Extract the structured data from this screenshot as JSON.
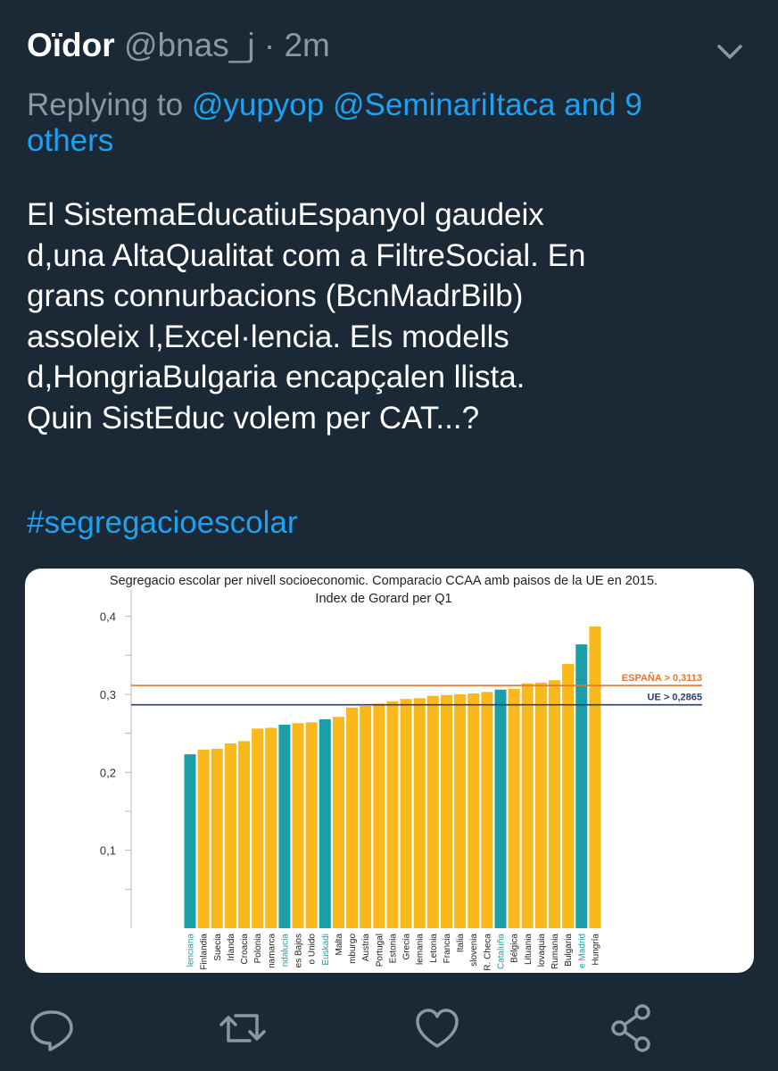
{
  "tweet": {
    "name": "Oïdor",
    "handle": "@bnas_j",
    "separator": "·",
    "time": "2m",
    "reply": {
      "prefix": "Replying to",
      "mentions": [
        "@yupyop",
        "@SeminariItaca"
      ],
      "others": "and 9 others"
    },
    "lines": [
      "El SistemaEducatiuEspanyol gaudeix",
      "d,una AltaQualitat com a FiltreSocial. En",
      "grans connurbacions (BcnMadrBilb)",
      "assoleix l,Excel·lencia. Els modells",
      "d,HongriaBulgaria encapçalen llista.",
      "Quin SistEduc volem per CAT...?"
    ],
    "hashtag": "#segregacioescolar"
  },
  "chart": {
    "type": "bar",
    "title": [
      "Segregacio escolar per nivell socioeconomic. Comparacio CCAA amb paisos de la UE en 2015.",
      "Index de Gorard per Q1"
    ],
    "categories": [
      "lenciana",
      "Finlandia",
      "Suecia",
      "Irlanda",
      "Croacia",
      "Polonia",
      "namarca",
      "ndalucia",
      "es Bajos",
      "o Unido",
      "Euskadi",
      "Malta",
      "mburgo",
      "Austria",
      "Portugal",
      "Estonia",
      "Grecia",
      "lemania",
      "Letonia",
      "Francia",
      "Italia",
      "slovenia",
      "R. Checa",
      "Cataluña",
      "Bélgica",
      "Lituania",
      "lovaquia",
      "Rumania",
      "Bulgaria",
      "e Madrid",
      "Hungría"
    ],
    "values": [
      0.223,
      0.229,
      0.23,
      0.237,
      0.24,
      0.256,
      0.257,
      0.261,
      0.263,
      0.264,
      0.268,
      0.271,
      0.283,
      0.285,
      0.288,
      0.291,
      0.294,
      0.295,
      0.298,
      0.299,
      0.3,
      0.301,
      0.303,
      0.306,
      0.307,
      0.314,
      0.315,
      0.318,
      0.339,
      0.364,
      0.387
    ],
    "colors": [
      "#1a9ea8",
      "#f9b81b",
      "#f9b81b",
      "#f9b81b",
      "#f9b81b",
      "#f9b81b",
      "#f9b81b",
      "#1a9ea8",
      "#f9b81b",
      "#f9b81b",
      "#1a9ea8",
      "#f9b81b",
      "#f9b81b",
      "#f9b81b",
      "#f9b81b",
      "#f9b81b",
      "#f9b81b",
      "#f9b81b",
      "#f9b81b",
      "#f9b81b",
      "#f9b81b",
      "#f9b81b",
      "#f9b81b",
      "#1a9ea8",
      "#f9b81b",
      "#f9b81b",
      "#f9b81b",
      "#f9b81b",
      "#f9b81b",
      "#1a9ea8",
      "#f9b81b"
    ],
    "ylim": [
      0,
      0.435
    ],
    "yticks": [
      {
        "value": 0.1,
        "label": "0,1"
      },
      {
        "value": 0.2,
        "label": "0,2"
      },
      {
        "value": 0.3,
        "label": "0,3"
      },
      {
        "value": 0.4,
        "label": "0,4"
      }
    ],
    "yminorticks": [
      0.05,
      0.15,
      0.25,
      0.35
    ],
    "reference_lines": [
      {
        "value": 0.3113,
        "label": "ESPAÑA > 0,3113",
        "color": "#e8752a"
      },
      {
        "value": 0.2865,
        "label": "UE > 0,2865",
        "color": "#2b3a7a"
      }
    ]
  }
}
